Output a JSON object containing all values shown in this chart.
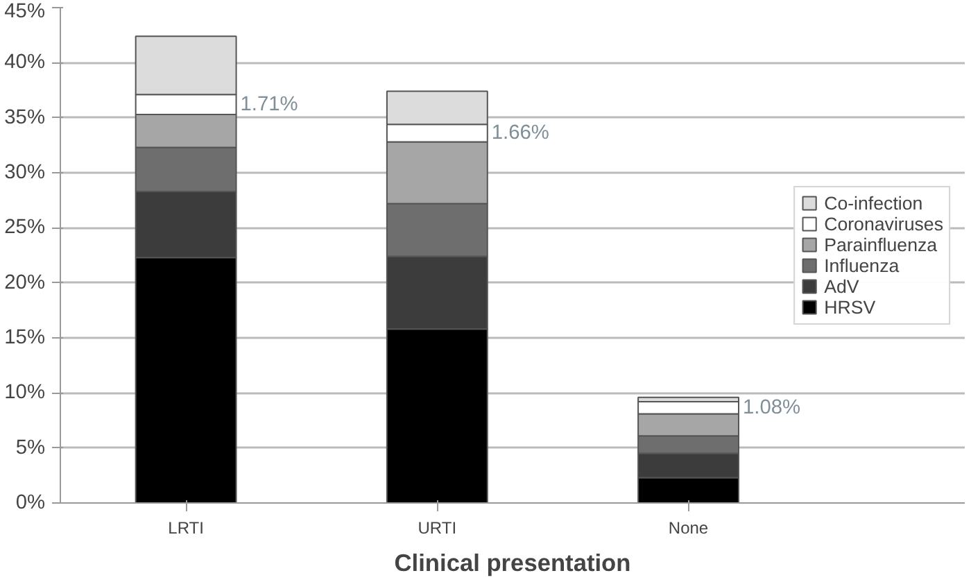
{
  "chart_data": {
    "type": "bar",
    "stacked": true,
    "xlabel": "Clinical presentation",
    "categories": [
      "LRTI",
      "URTI",
      "None"
    ],
    "series": [
      {
        "name": "HRSV",
        "color": "#000000",
        "values": [
          22.3,
          15.8,
          2.3
        ]
      },
      {
        "name": "AdV",
        "color": "#3c3c3c",
        "values": [
          6.0,
          6.6,
          2.2
        ]
      },
      {
        "name": "Influenza",
        "color": "#6e6e6e",
        "values": [
          4.0,
          4.8,
          1.6
        ]
      },
      {
        "name": "Parainfluenza",
        "color": "#a6a6a6",
        "values": [
          3.0,
          5.6,
          2.0
        ]
      },
      {
        "name": "Coronaviruses",
        "color": "#ffffff",
        "values": [
          1.8,
          1.6,
          1.1
        ]
      },
      {
        "name": "Co-infection",
        "color": "#dcdcdc",
        "values": [
          5.3,
          3.0,
          0.4
        ]
      }
    ],
    "ylim": [
      0,
      45
    ],
    "yticks": [
      {
        "value": 0,
        "label": "0%"
      },
      {
        "value": 5,
        "label": "5%"
      },
      {
        "value": 10,
        "label": "10%"
      },
      {
        "value": 15,
        "label": "15%"
      },
      {
        "value": 20,
        "label": "20%"
      },
      {
        "value": 25,
        "label": "25%"
      },
      {
        "value": 30,
        "label": "30%"
      },
      {
        "value": 35,
        "label": "35%"
      },
      {
        "value": 40,
        "label": "40%"
      },
      {
        "value": 45,
        "label": "45%"
      }
    ],
    "grid": "y",
    "legend": "right",
    "annotations": [
      "1.71%",
      "1.66%",
      "1.08%"
    ]
  }
}
